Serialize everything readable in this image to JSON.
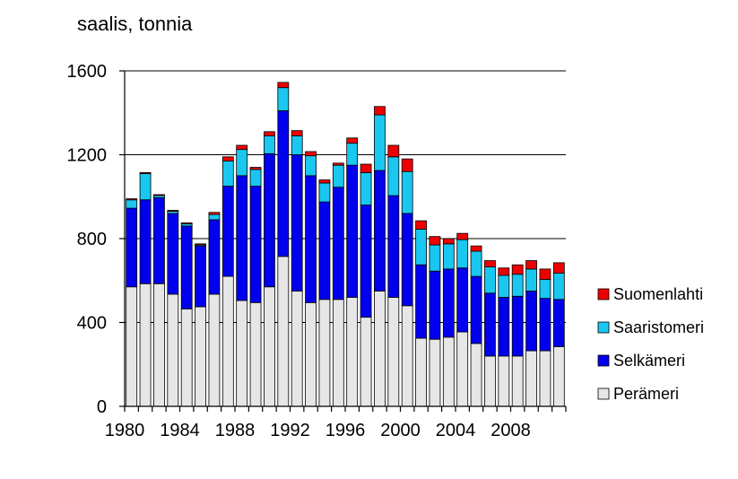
{
  "chart_data": {
    "type": "bar",
    "stacked": true,
    "ylabel": "saalis, tonnia",
    "xlabel": "",
    "ylim": [
      0,
      1600
    ],
    "yticks": [
      0,
      400,
      800,
      1200,
      1600
    ],
    "xtick_labels": [
      "1980",
      "1984",
      "1988",
      "1992",
      "1996",
      "2000",
      "2004",
      "2008"
    ],
    "grid": true,
    "legend_position": "right",
    "categories": [
      1980,
      1981,
      1982,
      1983,
      1984,
      1985,
      1986,
      1987,
      1988,
      1989,
      1990,
      1991,
      1992,
      1993,
      1994,
      1995,
      1996,
      1997,
      1998,
      1999,
      2000,
      2001,
      2002,
      2003,
      2004,
      2005,
      2006,
      2007,
      2008,
      2009,
      2010,
      2011
    ],
    "series": [
      {
        "name": "Perämeri",
        "color": "#e6e6e6",
        "values": [
          570,
          585,
          585,
          535,
          465,
          475,
          535,
          620,
          505,
          495,
          570,
          715,
          550,
          495,
          510,
          510,
          520,
          425,
          550,
          520,
          480,
          325,
          320,
          330,
          355,
          300,
          240,
          240,
          240,
          265,
          265,
          285
        ]
      },
      {
        "name": "Selkämeri",
        "color": "#0000ee",
        "values": [
          375,
          400,
          410,
          385,
          395,
          290,
          355,
          430,
          595,
          555,
          635,
          695,
          650,
          605,
          465,
          535,
          630,
          535,
          575,
          485,
          440,
          350,
          325,
          325,
          305,
          320,
          300,
          280,
          285,
          285,
          250,
          225
        ]
      },
      {
        "name": "Saaristomeri",
        "color": "#19c7f0",
        "values": [
          40,
          125,
          10,
          10,
          10,
          5,
          25,
          120,
          125,
          80,
          85,
          110,
          90,
          95,
          90,
          105,
          105,
          155,
          265,
          185,
          200,
          170,
          125,
          120,
          135,
          120,
          125,
          105,
          105,
          105,
          90,
          125
        ]
      },
      {
        "name": "Suomenlahti",
        "color": "#ee0000",
        "values": [
          5,
          5,
          5,
          5,
          5,
          5,
          10,
          20,
          20,
          10,
          20,
          25,
          25,
          20,
          15,
          10,
          25,
          40,
          40,
          55,
          60,
          40,
          40,
          25,
          30,
          25,
          30,
          35,
          45,
          40,
          50,
          50
        ]
      }
    ],
    "legend_order": [
      "Suomenlahti",
      "Saaristomeri",
      "Selkämeri",
      "Perämeri"
    ]
  }
}
